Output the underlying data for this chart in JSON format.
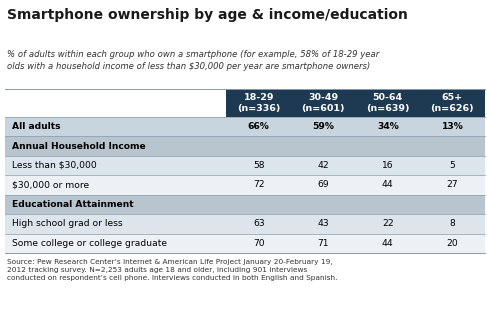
{
  "title": "Smartphone ownership by age & income/education",
  "subtitle": "% of adults within each group who own a smartphone (for example, 58% of 18-29 year\nolds with a household income of less than $30,000 per year are smartphone owners)",
  "col_headers": [
    "18-29\n(n=336)",
    "30-49\n(n=601)",
    "50-64\n(n=639)",
    "65+\n(n=626)"
  ],
  "header_bg": "#1e3a52",
  "header_fg": "#ffffff",
  "section_bg": "#b8c4ce",
  "row_alt1_bg": "#dce4ec",
  "row_alt2_bg": "#edf1f5",
  "all_adults_bg": "#c8d4de",
  "border_color": "#8a9aaa",
  "rows": [
    {
      "label": "All adults",
      "values": [
        "66%",
        "59%",
        "34%",
        "13%"
      ],
      "type": "all_adults"
    },
    {
      "label": "Annual Household Income",
      "values": [
        "",
        "",
        "",
        ""
      ],
      "type": "section"
    },
    {
      "label": "Less than $30,000",
      "values": [
        "58",
        "42",
        "16",
        "5"
      ],
      "type": "data_odd"
    },
    {
      "label": "$30,000 or more",
      "values": [
        "72",
        "69",
        "44",
        "27"
      ],
      "type": "data_even"
    },
    {
      "label": "Educational Attainment",
      "values": [
        "",
        "",
        "",
        ""
      ],
      "type": "section"
    },
    {
      "label": "High school grad or less",
      "values": [
        "63",
        "43",
        "22",
        "8"
      ],
      "type": "data_odd"
    },
    {
      "label": "Some college or college graduate",
      "values": [
        "70",
        "71",
        "44",
        "20"
      ],
      "type": "data_even"
    }
  ],
  "source": "Source: Pew Research Center’s Internet & American Life Project January 20-February 19,\n2012 tracking survey. N=2,253 adults age 18 and older, including 901 interviews\nconducted on respondent’s cell phone. Interviews conducted in both English and Spanish.",
  "bg_color": "#ffffff",
  "title_color": "#1a1a1a",
  "subtitle_color": "#333333",
  "source_color": "#333333"
}
